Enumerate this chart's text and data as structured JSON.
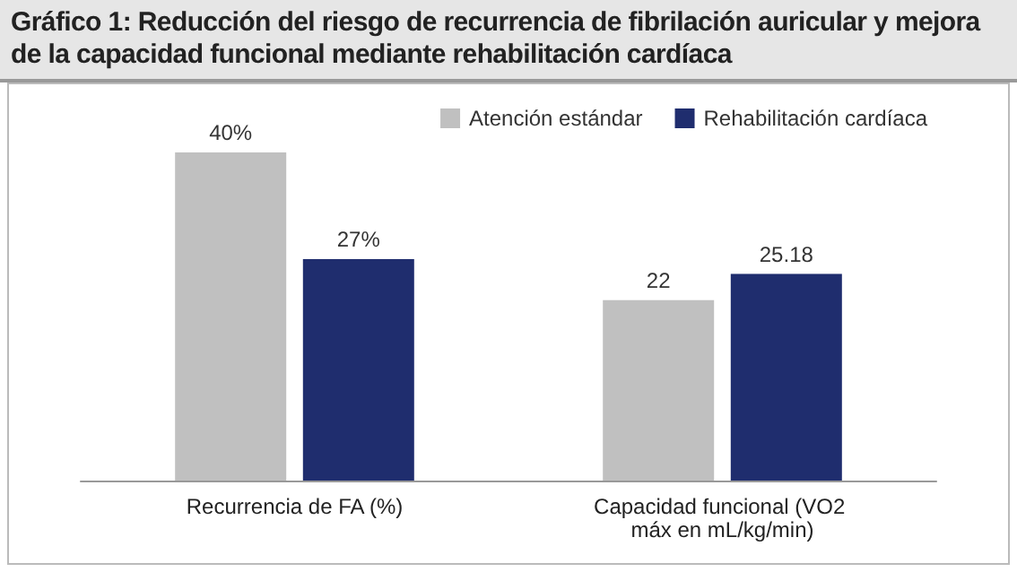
{
  "chart_data": {
    "type": "bar",
    "title": "Gráfico 1: Reducción del riesgo de recurrencia de fibrilación auricular y mejora de la capacidad funcional mediante rehabilitación cardíaca",
    "categories": [
      "Recurrencia de FA (%)",
      "Capacidad funcional (VO2 máx en mL/kg/min)"
    ],
    "series": [
      {
        "name": "Atención estándar",
        "color": "#c0c0c0",
        "values": [
          40,
          22
        ],
        "value_labels": [
          "40%",
          "22"
        ]
      },
      {
        "name": "Rehabilitación cardíaca",
        "color": "#1f2d6e",
        "values": [
          27,
          25.18
        ],
        "value_labels": [
          "27%",
          "25.18"
        ]
      }
    ],
    "legend": "top right",
    "grid": false
  }
}
